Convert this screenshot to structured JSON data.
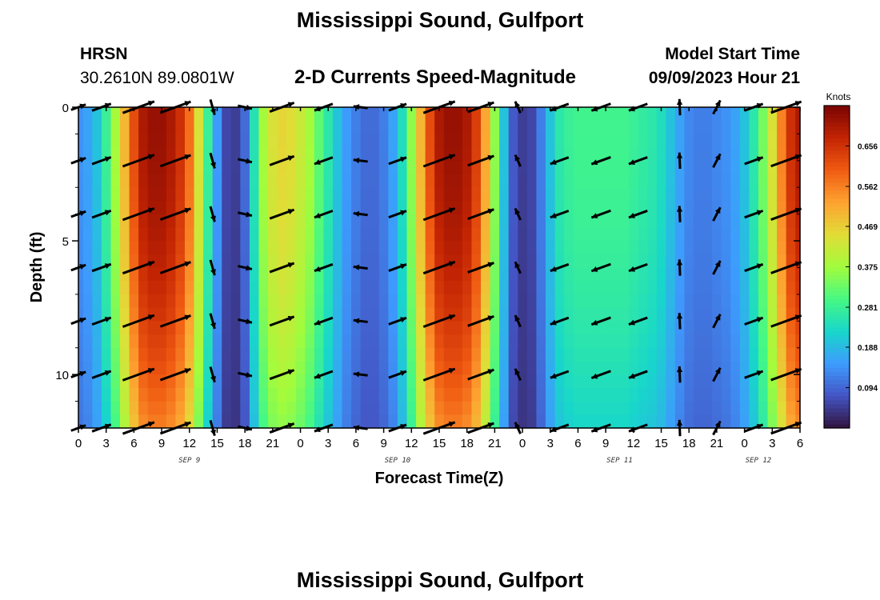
{
  "header": {
    "title": "Mississippi Sound, Gulfport",
    "station_id": "HRSN",
    "coords": "30.2610N  89.0801W",
    "chart_title": "2-D Currents Speed-Magnitude",
    "model_label": "Model Start Time",
    "model_time": "09/09/2023 Hour 21",
    "bottom_title": "Mississippi Sound, Gulfport"
  },
  "chart_data": {
    "type": "heatmap",
    "title": "2-D Currents Speed-Magnitude",
    "xlabel": "Forecast Time(Z)",
    "ylabel": "Depth (ft)",
    "x_range_hours": [
      0,
      78
    ],
    "ylim": [
      0,
      12
    ],
    "y_inverted": true,
    "x_tick_labels": [
      "0",
      "3",
      "6",
      "9",
      "12",
      "15",
      "18",
      "21",
      "0",
      "3",
      "6",
      "9",
      "12",
      "15",
      "18",
      "21",
      "0",
      "3",
      "6",
      "9",
      "12",
      "15",
      "18",
      "21",
      "0",
      "3",
      "6"
    ],
    "x_date_labels": [
      {
        "label": "SEP 9",
        "hour": 12
      },
      {
        "label": "SEP 10",
        "hour": 34.5
      },
      {
        "label": "SEP 11",
        "hour": 58.5
      },
      {
        "label": "SEP 12",
        "hour": 73.5
      }
    ],
    "y_ticks": [
      0,
      5,
      10
    ],
    "y_minor_ticks": [
      1,
      2,
      3,
      4,
      6,
      7,
      8,
      9,
      11,
      12
    ],
    "colorbar": {
      "label": "Knots",
      "ticks": [
        "0.094",
        "0.188",
        "0.281",
        "0.375",
        "0.469",
        "0.562",
        "0.656"
      ],
      "tick_values": [
        0.094,
        0.188,
        0.281,
        0.375,
        0.469,
        0.562,
        0.656
      ],
      "min": 0.0,
      "max": 0.75,
      "colors": [
        "#30123b",
        "#4454c4",
        "#3e9bfe",
        "#18d6cb",
        "#46f884",
        "#a2fc3c",
        "#e1dd37",
        "#fea331",
        "#f05b12",
        "#c42503",
        "#7a0403"
      ]
    },
    "speed_profile": {
      "hours": [
        0,
        1,
        2,
        3,
        4,
        5,
        6,
        7,
        8,
        9,
        10,
        11,
        12,
        13,
        14,
        15,
        16,
        17,
        18,
        19,
        20,
        21,
        22,
        23,
        24,
        25,
        26,
        27,
        28,
        29,
        30,
        31,
        32,
        33,
        34,
        35,
        36,
        37,
        38,
        39,
        40,
        41,
        42,
        43,
        44,
        45,
        46,
        47,
        48,
        49,
        50,
        51,
        52,
        53,
        54,
        55,
        56,
        57,
        58,
        59,
        60,
        61,
        62,
        63,
        64,
        65,
        66,
        67,
        68,
        69,
        70,
        71,
        72,
        73,
        74,
        75,
        76,
        77,
        78
      ],
      "speeds_surface": [
        0.14,
        0.16,
        0.2,
        0.28,
        0.38,
        0.5,
        0.62,
        0.7,
        0.72,
        0.72,
        0.7,
        0.66,
        0.58,
        0.44,
        0.28,
        0.15,
        0.06,
        0.05,
        0.1,
        0.25,
        0.38,
        0.44,
        0.46,
        0.45,
        0.42,
        0.38,
        0.32,
        0.26,
        0.2,
        0.15,
        0.12,
        0.1,
        0.1,
        0.12,
        0.16,
        0.24,
        0.36,
        0.5,
        0.62,
        0.7,
        0.72,
        0.72,
        0.7,
        0.64,
        0.52,
        0.36,
        0.2,
        0.08,
        0.05,
        0.06,
        0.12,
        0.2,
        0.26,
        0.28,
        0.29,
        0.29,
        0.29,
        0.29,
        0.29,
        0.29,
        0.28,
        0.27,
        0.26,
        0.24,
        0.2,
        0.16,
        0.13,
        0.12,
        0.12,
        0.13,
        0.14,
        0.16,
        0.2,
        0.26,
        0.34,
        0.44,
        0.56,
        0.66,
        0.7
      ]
    },
    "vectors": {
      "depths": [
        0,
        2,
        4,
        6,
        8,
        10,
        12
      ],
      "hours": [
        0,
        2.5,
        6.5,
        10.5,
        14.5,
        18,
        22,
        26.5,
        30.5,
        34.5,
        39,
        43.5,
        47.5,
        52,
        56.5,
        60.5,
        65,
        69,
        73,
        76.5
      ],
      "direction_note": "arrows indicate flow direction; length scales with speed"
    }
  }
}
